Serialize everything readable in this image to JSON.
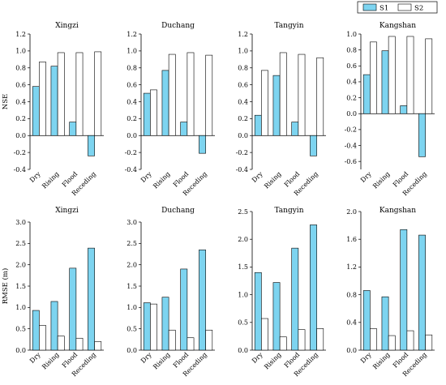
{
  "legend": {
    "items": [
      {
        "name": "S1",
        "color": "#7dd4f0"
      },
      {
        "name": "S2",
        "color": "#ffffff"
      }
    ]
  },
  "colors": {
    "s1": "#7dd4f0",
    "s2": "#ffffff",
    "stroke": "#000000"
  },
  "chart_data": [
    {
      "type": "bar",
      "title": "Xingzi",
      "ylabel": "NSE",
      "categories": [
        "Dry",
        "Rising",
        "Flood",
        "Receding"
      ],
      "ylim": [
        -0.4,
        1.2
      ],
      "yticks": [
        -0.4,
        -0.2,
        0.0,
        0.2,
        0.4,
        0.6,
        0.8,
        1.0,
        1.2
      ],
      "tick_decimals": 1,
      "series": [
        {
          "name": "S1",
          "values": [
            0.58,
            0.82,
            0.16,
            -0.24
          ]
        },
        {
          "name": "S2",
          "values": [
            0.87,
            0.98,
            0.98,
            0.99
          ]
        }
      ]
    },
    {
      "type": "bar",
      "title": "Duchang",
      "ylabel": "",
      "categories": [
        "Dry",
        "Rising",
        "Flood",
        "Receding"
      ],
      "ylim": [
        -0.4,
        1.2
      ],
      "yticks": [
        -0.4,
        -0.2,
        0.0,
        0.2,
        0.4,
        0.6,
        0.8,
        1.0,
        1.2
      ],
      "tick_decimals": 1,
      "series": [
        {
          "name": "S1",
          "values": [
            0.5,
            0.77,
            0.16,
            -0.21
          ]
        },
        {
          "name": "S2",
          "values": [
            0.54,
            0.96,
            0.98,
            0.95
          ]
        }
      ]
    },
    {
      "type": "bar",
      "title": "Tangyin",
      "ylabel": "",
      "categories": [
        "Dry",
        "Rising",
        "Flood",
        "Receding"
      ],
      "ylim": [
        -0.4,
        1.2
      ],
      "yticks": [
        -0.4,
        -0.2,
        0.0,
        0.2,
        0.4,
        0.6,
        0.8,
        1.0,
        1.2
      ],
      "tick_decimals": 1,
      "series": [
        {
          "name": "S1",
          "values": [
            0.24,
            0.71,
            0.16,
            -0.24
          ]
        },
        {
          "name": "S2",
          "values": [
            0.77,
            0.98,
            0.96,
            0.92
          ]
        }
      ]
    },
    {
      "type": "bar",
      "title": "Kangshan",
      "ylabel": "",
      "categories": [
        "Dry",
        "Rising",
        "Flood",
        "Receding"
      ],
      "ylim": [
        -0.7,
        1.0
      ],
      "yticks": [
        -0.6,
        -0.4,
        -0.2,
        0.0,
        0.2,
        0.4,
        0.6,
        0.8,
        1.0
      ],
      "tick_decimals": 1,
      "series": [
        {
          "name": "S1",
          "values": [
            0.49,
            0.79,
            0.1,
            -0.54
          ]
        },
        {
          "name": "S2",
          "values": [
            0.9,
            0.97,
            0.97,
            0.94
          ]
        }
      ]
    },
    {
      "type": "bar",
      "title": "Xingzi",
      "ylabel": "RMSE (m)",
      "categories": [
        "Dry",
        "Rising",
        "Flood",
        "Receding"
      ],
      "ylim": [
        0,
        3.0
      ],
      "yticks": [
        0.0,
        0.5,
        1.0,
        1.5,
        2.0,
        2.5,
        3.0
      ],
      "tick_decimals": 1,
      "series": [
        {
          "name": "S1",
          "values": [
            0.93,
            1.14,
            1.92,
            2.39
          ]
        },
        {
          "name": "S2",
          "values": [
            0.58,
            0.33,
            0.28,
            0.2
          ]
        }
      ]
    },
    {
      "type": "bar",
      "title": "Duchang",
      "ylabel": "",
      "categories": [
        "Dry",
        "Rising",
        "Flood",
        "Receding"
      ],
      "ylim": [
        0,
        3.0
      ],
      "yticks": [
        0.0,
        0.5,
        1.0,
        1.5,
        2.0,
        2.5,
        3.0
      ],
      "tick_decimals": 1,
      "series": [
        {
          "name": "S1",
          "values": [
            1.11,
            1.24,
            1.9,
            2.35
          ]
        },
        {
          "name": "S2",
          "values": [
            1.08,
            0.47,
            0.29,
            0.47
          ]
        }
      ]
    },
    {
      "type": "bar",
      "title": "Tangyin",
      "ylabel": "",
      "categories": [
        "Dry",
        "Rising",
        "Flood",
        "Receding"
      ],
      "ylim": [
        0,
        2.5
      ],
      "yticks": [
        0.0,
        0.5,
        1.0,
        1.5,
        2.0,
        2.5
      ],
      "tick_decimals": 1,
      "series": [
        {
          "name": "S1",
          "values": [
            1.4,
            1.22,
            1.84,
            2.26
          ]
        },
        {
          "name": "S2",
          "values": [
            0.57,
            0.24,
            0.37,
            0.39
          ]
        }
      ]
    },
    {
      "type": "bar",
      "title": "Kangshan",
      "ylabel": "",
      "categories": [
        "Dry",
        "Rising",
        "Flood",
        "Receding"
      ],
      "ylim": [
        0,
        2.0
      ],
      "yticks": [
        0.0,
        0.4,
        0.8,
        1.2,
        1.6,
        2.0
      ],
      "tick_decimals": 1,
      "series": [
        {
          "name": "S1",
          "values": [
            0.86,
            0.77,
            1.74,
            1.66
          ]
        },
        {
          "name": "S2",
          "values": [
            0.31,
            0.21,
            0.28,
            0.22
          ]
        }
      ]
    }
  ]
}
